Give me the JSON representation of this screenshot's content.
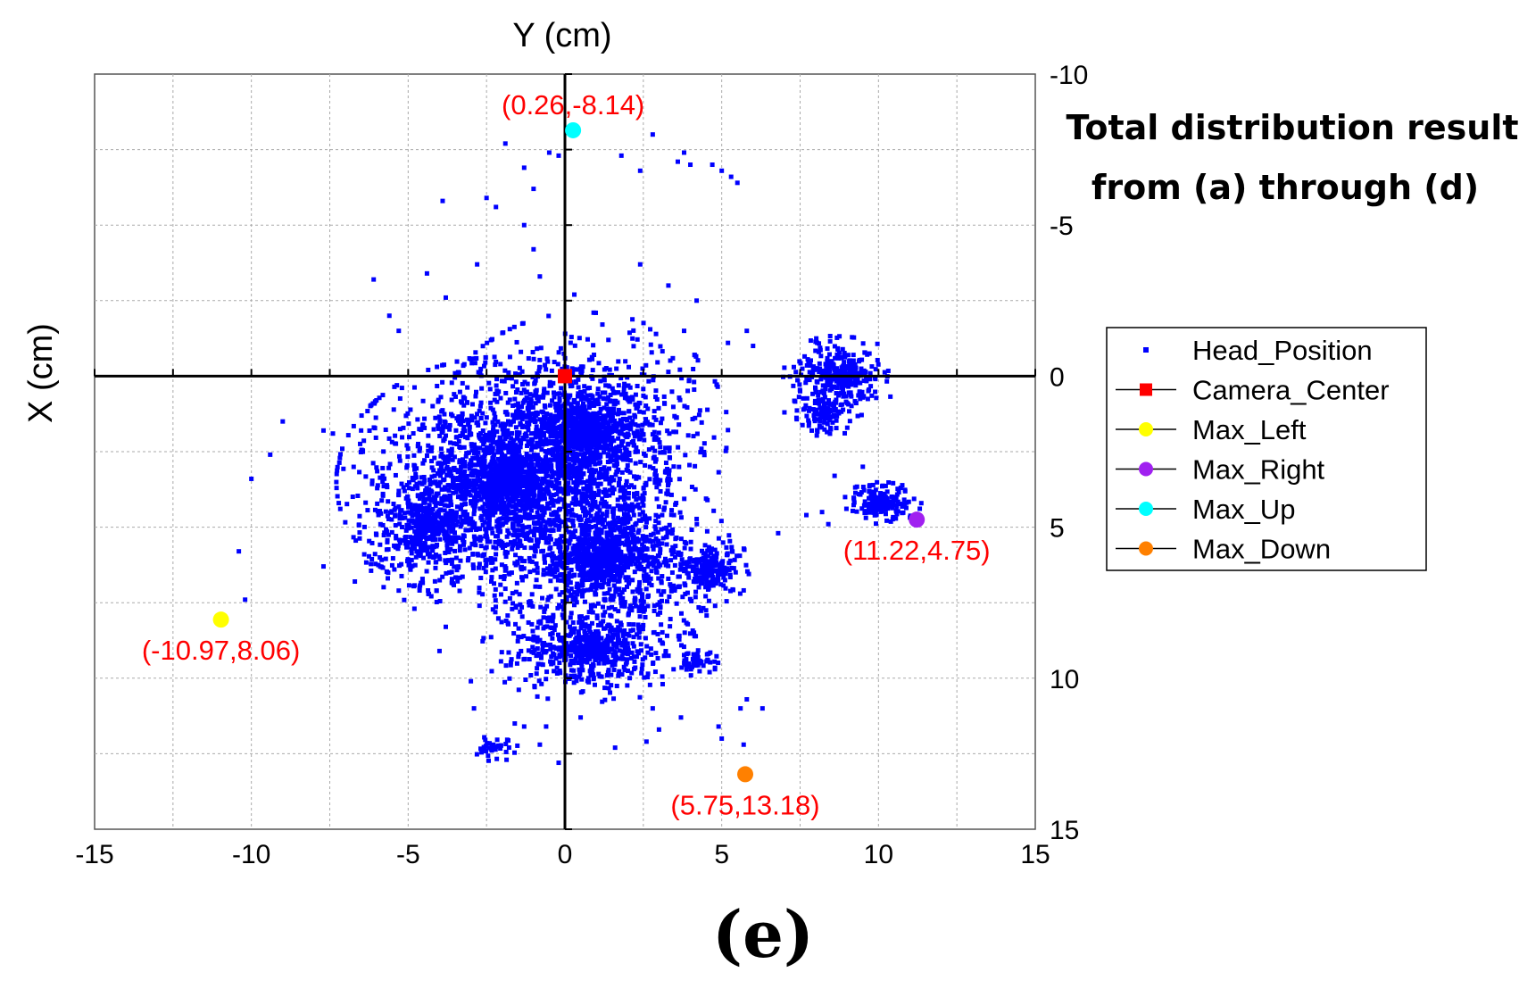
{
  "chart_data": {
    "type": "scatter",
    "title": "Total distribution result from (a) through (d)",
    "title_lines": [
      "Total distribution result",
      "from (a) through (d)"
    ],
    "panel_label": "(e)",
    "xlabel": "Y (cm)",
    "ylabel": "X (cm)",
    "xlim": [
      -15,
      15
    ],
    "ylim": [
      -10,
      15
    ],
    "y_inverted": true,
    "grid": true,
    "x_ticks": [
      -15,
      -10,
      -5,
      0,
      5,
      10,
      15
    ],
    "y_ticks": [
      -10,
      -5,
      0,
      5,
      10,
      15
    ],
    "legend_position": "right",
    "head_position_clusters": [
      {
        "cx": -2.0,
        "cy": 3.5,
        "rx": 4.6,
        "ry": 3.6,
        "n": 2200
      },
      {
        "cx": 0.6,
        "cy": 1.8,
        "rx": 4.0,
        "ry": 3.4,
        "n": 1600
      },
      {
        "cx": 1.2,
        "cy": 6.0,
        "rx": 3.6,
        "ry": 2.8,
        "n": 1400
      },
      {
        "cx": 0.8,
        "cy": 9.0,
        "rx": 3.0,
        "ry": 1.6,
        "n": 700
      },
      {
        "cx": -4.5,
        "cy": 5.0,
        "rx": 1.8,
        "ry": 2.2,
        "n": 500
      },
      {
        "cx": 4.6,
        "cy": 6.4,
        "rx": 1.2,
        "ry": 1.0,
        "n": 260
      },
      {
        "cx": 8.8,
        "cy": 0.0,
        "rx": 1.6,
        "ry": 1.2,
        "n": 420
      },
      {
        "cx": 8.3,
        "cy": 1.3,
        "rx": 0.8,
        "ry": 0.7,
        "n": 120
      },
      {
        "cx": 10.1,
        "cy": 4.2,
        "rx": 1.1,
        "ry": 0.6,
        "n": 220
      },
      {
        "cx": -2.2,
        "cy": 12.3,
        "rx": 0.6,
        "ry": 0.4,
        "n": 40
      },
      {
        "cx": 4.2,
        "cy": 9.5,
        "rx": 0.6,
        "ry": 0.5,
        "n": 60
      }
    ],
    "head_position_outliers": [
      [
        -1.9,
        -7.7
      ],
      [
        -1.3,
        -6.9
      ],
      [
        -0.5,
        -7.4
      ],
      [
        -0.2,
        -7.3
      ],
      [
        1.8,
        -7.3
      ],
      [
        2.8,
        -8.0
      ],
      [
        3.8,
        -7.4
      ],
      [
        3.6,
        -7.1
      ],
      [
        4.0,
        -7.0
      ],
      [
        4.7,
        -7.0
      ],
      [
        5.0,
        -6.8
      ],
      [
        5.3,
        -6.6
      ],
      [
        5.5,
        -6.4
      ],
      [
        2.4,
        -6.8
      ],
      [
        -3.9,
        -5.8
      ],
      [
        -2.5,
        -5.9
      ],
      [
        -2.2,
        -5.6
      ],
      [
        -1.0,
        -6.2
      ],
      [
        -1.3,
        -5.0
      ],
      [
        -2.8,
        -3.7
      ],
      [
        -1.0,
        -4.2
      ],
      [
        -0.8,
        -3.3
      ],
      [
        2.4,
        -3.7
      ],
      [
        3.3,
        -3.0
      ],
      [
        0.3,
        -2.7
      ],
      [
        -6.1,
        -3.2
      ],
      [
        -5.6,
        -2.0
      ],
      [
        -5.3,
        -1.5
      ],
      [
        -4.4,
        -3.4
      ],
      [
        -3.8,
        -2.6
      ],
      [
        4.2,
        -2.5
      ],
      [
        3.8,
        -1.5
      ],
      [
        5.2,
        -1.1
      ],
      [
        5.8,
        -1.5
      ],
      [
        6.0,
        -1.0
      ],
      [
        7.3,
        -0.3
      ],
      [
        7.5,
        0.5
      ],
      [
        7.0,
        1.2
      ],
      [
        -9.0,
        1.5
      ],
      [
        -10.0,
        3.4
      ],
      [
        -9.4,
        2.6
      ],
      [
        -7.7,
        1.8
      ],
      [
        -7.4,
        1.9
      ],
      [
        -6.5,
        1.8
      ],
      [
        -10.2,
        7.4
      ],
      [
        -10.4,
        5.8
      ],
      [
        -7.7,
        6.3
      ],
      [
        -6.7,
        6.8
      ],
      [
        -6.4,
        5.9
      ],
      [
        -5.3,
        7.1
      ],
      [
        -4.8,
        7.7
      ],
      [
        -3.8,
        8.3
      ],
      [
        -4.0,
        9.1
      ],
      [
        -3.0,
        10.1
      ],
      [
        -2.9,
        11.0
      ],
      [
        -1.6,
        11.5
      ],
      [
        -1.3,
        11.6
      ],
      [
        2.8,
        11.0
      ],
      [
        3.0,
        11.7
      ],
      [
        2.6,
        12.1
      ],
      [
        3.7,
        11.3
      ],
      [
        4.9,
        11.6
      ],
      [
        5.0,
        12.0
      ],
      [
        5.6,
        11.0
      ],
      [
        5.7,
        12.2
      ],
      [
        6.3,
        11.0
      ],
      [
        5.8,
        10.7
      ],
      [
        6.8,
        5.2
      ],
      [
        7.7,
        4.6
      ],
      [
        8.2,
        4.5
      ],
      [
        8.4,
        4.9
      ],
      [
        8.6,
        3.3
      ],
      [
        9.5,
        3.0
      ],
      [
        -0.6,
        11.6
      ],
      [
        0.5,
        11.3
      ],
      [
        -0.2,
        12.8
      ],
      [
        1.6,
        12.3
      ],
      [
        -0.8,
        12.2
      ]
    ],
    "series": [
      {
        "name": "Head_Position",
        "marker": "small-square",
        "color": "#0000ff"
      },
      {
        "name": "Camera_Center",
        "marker": "square",
        "color": "#ff0000",
        "points": [
          [
            0.0,
            0.0
          ]
        ]
      },
      {
        "name": "Max_Left",
        "marker": "circle",
        "color": "#ffff00",
        "points": [
          [
            -10.97,
            8.06
          ]
        ]
      },
      {
        "name": "Max_Right",
        "marker": "circle",
        "color": "#a020f0",
        "points": [
          [
            11.22,
            4.75
          ]
        ]
      },
      {
        "name": "Max_Up",
        "marker": "circle",
        "color": "#00ffff",
        "points": [
          [
            0.26,
            -8.14
          ]
        ]
      },
      {
        "name": "Max_Down",
        "marker": "circle",
        "color": "#ff8000",
        "points": [
          [
            5.75,
            13.18
          ]
        ]
      }
    ],
    "annotations": [
      {
        "text": "(0.26,-8.14)",
        "x": 0.26,
        "y": -8.14,
        "color": "#ff0000",
        "place": "above"
      },
      {
        "text": "(-10.97,8.06)",
        "x": -10.97,
        "y": 8.06,
        "color": "#ff0000",
        "place": "below"
      },
      {
        "text": "(11.22,4.75)",
        "x": 11.22,
        "y": 4.75,
        "color": "#ff0000",
        "place": "below"
      },
      {
        "text": "(5.75,13.18)",
        "x": 5.75,
        "y": 13.18,
        "color": "#ff0000",
        "place": "below"
      }
    ]
  }
}
